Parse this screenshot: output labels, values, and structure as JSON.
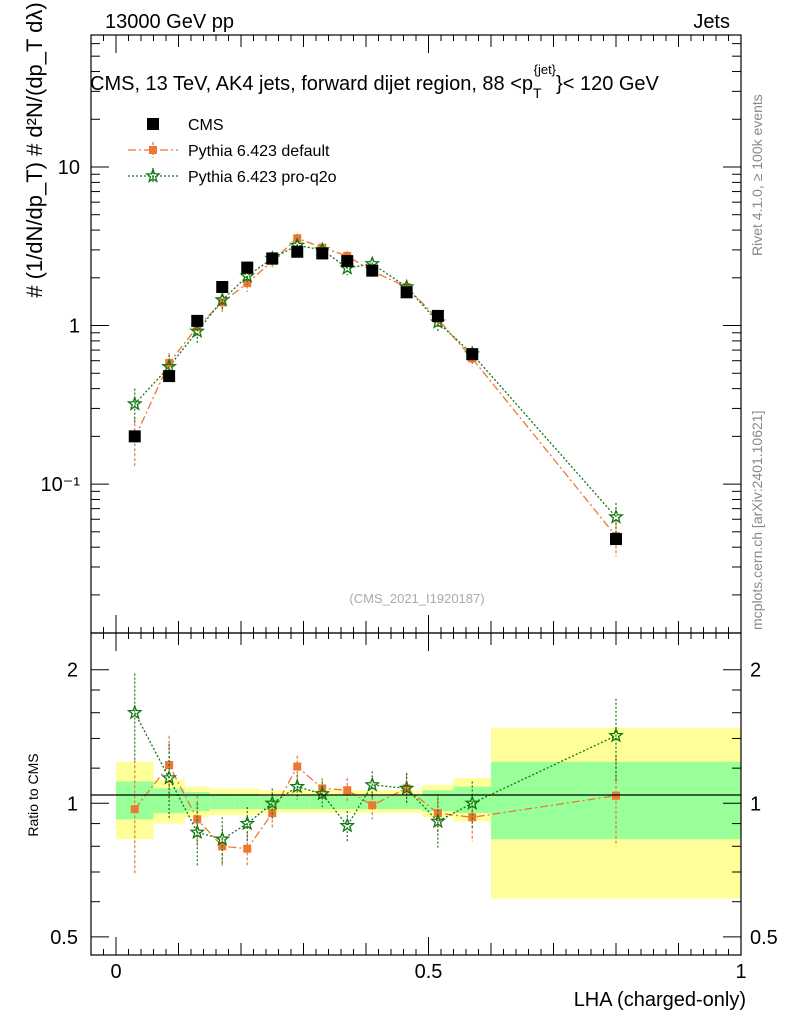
{
  "header": {
    "left": "13000 GeV pp",
    "right": "Jets"
  },
  "side_labels": {
    "rivet": "Rivet 4.1.0, ≥ 100k events",
    "mcplots": "mcplots.cern.ch [arXiv:2401.10621]"
  },
  "watermark": "(CMS_2021_I1920187)",
  "colors": {
    "cms": "#000000",
    "default": "#ee7733",
    "proq2o": "#117711",
    "band_inner": "#99ff99",
    "band_outer": "#ffff99"
  },
  "chart_data": [
    {
      "type": "scatter",
      "panel": "main",
      "title": "CMS, 13 TeV, AK4 jets, forward dijet region, 88 <p",
      "title_sup": "{jet}",
      "title_sub": "T",
      "title_end": "}< 120 GeV",
      "ylabel": "# (1/dN/dp_T) # d²N/(dp_T dλ)",
      "yscale": "log",
      "ylim": [
        0.0115,
        68
      ],
      "xlim": [
        -0.04,
        1.0
      ],
      "ytick_labels": [
        "10⁻¹",
        "1",
        "10"
      ],
      "legend": [
        "CMS",
        "Pythia 6.423 default",
        "Pythia 6.423 pro-q2o"
      ],
      "legend_placement": "top-left",
      "x": [
        0.03,
        0.085,
        0.13,
        0.17,
        0.21,
        0.25,
        0.29,
        0.33,
        0.37,
        0.41,
        0.465,
        0.515,
        0.57,
        0.8
      ],
      "series": [
        {
          "name": "CMS",
          "values": [
            0.2,
            0.48,
            1.07,
            1.75,
            2.32,
            2.65,
            2.92,
            2.85,
            2.55,
            2.22,
            1.62,
            1.15,
            0.66,
            0.045
          ]
        },
        {
          "name": "Pythia 6.423 default",
          "values": [
            0.195,
            0.58,
            0.98,
            1.4,
            1.85,
            2.55,
            3.55,
            3.1,
            2.75,
            2.2,
            1.75,
            1.1,
            0.62,
            0.047
          ],
          "errors": [
            0.065,
            0.09,
            0.13,
            0.18,
            0.22,
            0.22,
            0.25,
            0.2,
            0.2,
            0.18,
            0.15,
            0.12,
            0.07,
            0.012
          ]
        },
        {
          "name": "Pythia 6.423 pro-q2o",
          "values": [
            0.32,
            0.55,
            0.92,
            1.45,
            2.05,
            2.65,
            3.2,
            3.0,
            2.3,
            2.45,
            1.75,
            1.05,
            0.66,
            0.062
          ],
          "errors": [
            0.08,
            0.1,
            0.15,
            0.2,
            0.25,
            0.25,
            0.25,
            0.25,
            0.22,
            0.2,
            0.18,
            0.15,
            0.08,
            0.014
          ]
        }
      ]
    },
    {
      "type": "scatter",
      "panel": "ratio",
      "ylabel": "Ratio to CMS",
      "xlabel": "LHA (charged-only)",
      "yscale": "log",
      "ylim": [
        0.455,
        2.42
      ],
      "xlim": [
        -0.04,
        1.0
      ],
      "xtick_labels": [
        "0",
        "0.5",
        "1"
      ],
      "ytick_labels": [
        "0.5",
        "1",
        "2"
      ],
      "reference_line": 1.0,
      "bands": [
        {
          "xlo": 0.0,
          "xhi": 0.06,
          "inner": [
            0.92,
            1.12
          ],
          "outer": [
            0.83,
            1.24
          ]
        },
        {
          "xlo": 0.06,
          "xhi": 0.11,
          "inner": [
            0.95,
            1.08
          ],
          "outer": [
            0.9,
            1.13
          ]
        },
        {
          "xlo": 0.11,
          "xhi": 0.15,
          "inner": [
            0.96,
            1.06
          ],
          "outer": [
            0.93,
            1.09
          ]
        },
        {
          "xlo": 0.15,
          "xhi": 0.19,
          "inner": [
            0.97,
            1.05
          ],
          "outer": [
            0.94,
            1.08
          ]
        },
        {
          "xlo": 0.19,
          "xhi": 0.23,
          "inner": [
            0.97,
            1.05
          ],
          "outer": [
            0.94,
            1.08
          ]
        },
        {
          "xlo": 0.23,
          "xhi": 0.27,
          "inner": [
            0.97,
            1.04
          ],
          "outer": [
            0.95,
            1.07
          ]
        },
        {
          "xlo": 0.27,
          "xhi": 0.31,
          "inner": [
            0.97,
            1.04
          ],
          "outer": [
            0.95,
            1.07
          ]
        },
        {
          "xlo": 0.31,
          "xhi": 0.35,
          "inner": [
            0.97,
            1.04
          ],
          "outer": [
            0.95,
            1.07
          ]
        },
        {
          "xlo": 0.35,
          "xhi": 0.39,
          "inner": [
            0.97,
            1.04
          ],
          "outer": [
            0.95,
            1.07
          ]
        },
        {
          "xlo": 0.39,
          "xhi": 0.44,
          "inner": [
            0.97,
            1.04
          ],
          "outer": [
            0.95,
            1.07
          ]
        },
        {
          "xlo": 0.44,
          "xhi": 0.49,
          "inner": [
            0.97,
            1.04
          ],
          "outer": [
            0.95,
            1.07
          ]
        },
        {
          "xlo": 0.49,
          "xhi": 0.54,
          "inner": [
            0.96,
            1.07
          ],
          "outer": [
            0.93,
            1.1
          ]
        },
        {
          "xlo": 0.54,
          "xhi": 0.6,
          "inner": [
            0.95,
            1.09
          ],
          "outer": [
            0.91,
            1.14
          ]
        },
        {
          "xlo": 0.6,
          "xhi": 1.0,
          "inner": [
            0.83,
            1.24
          ],
          "outer": [
            0.61,
            1.48
          ]
        }
      ],
      "x": [
        0.03,
        0.085,
        0.13,
        0.17,
        0.21,
        0.25,
        0.29,
        0.33,
        0.37,
        0.41,
        0.465,
        0.515,
        0.57,
        0.8
      ],
      "series": [
        {
          "name": "Pythia 6.423 default",
          "values": [
            0.97,
            1.22,
            0.92,
            0.8,
            0.79,
            0.95,
            1.21,
            1.08,
            1.07,
            0.99,
            1.08,
            0.95,
            0.93,
            1.04
          ],
          "errors": [
            0.28,
            0.2,
            0.12,
            0.08,
            0.07,
            0.07,
            0.07,
            0.06,
            0.07,
            0.07,
            0.08,
            0.1,
            0.11,
            0.24
          ]
        },
        {
          "name": "Pythia 6.423 pro-q2o",
          "values": [
            1.6,
            1.14,
            0.86,
            0.83,
            0.9,
            1.0,
            1.09,
            1.05,
            0.89,
            1.1,
            1.08,
            0.91,
            1.0,
            1.42
          ],
          "errors": [
            0.36,
            0.22,
            0.14,
            0.1,
            0.08,
            0.08,
            0.07,
            0.07,
            0.07,
            0.08,
            0.09,
            0.12,
            0.12,
            0.3
          ]
        }
      ]
    }
  ]
}
